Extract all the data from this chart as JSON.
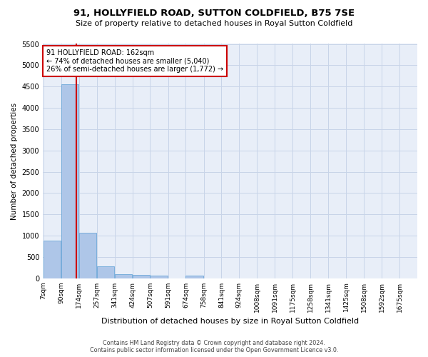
{
  "title1": "91, HOLLYFIELD ROAD, SUTTON COLDFIELD, B75 7SE",
  "title2": "Size of property relative to detached houses in Royal Sutton Coldfield",
  "xlabel": "Distribution of detached houses by size in Royal Sutton Coldfield",
  "ylabel": "Number of detached properties",
  "footer1": "Contains HM Land Registry data © Crown copyright and database right 2024.",
  "footer2": "Contains public sector information licensed under the Open Government Licence v3.0.",
  "property_size": 162,
  "annotation_line1": "91 HOLLYFIELD ROAD: 162sqm",
  "annotation_line2": "← 74% of detached houses are smaller (5,040)",
  "annotation_line3": "26% of semi-detached houses are larger (1,772) →",
  "bins": [
    7,
    90,
    174,
    257,
    341,
    424,
    507,
    591,
    674,
    758,
    841,
    924,
    1008,
    1091,
    1175,
    1258,
    1341,
    1425,
    1508,
    1592,
    1675
  ],
  "bin_labels": [
    "7sqm",
    "90sqm",
    "174sqm",
    "257sqm",
    "341sqm",
    "424sqm",
    "507sqm",
    "591sqm",
    "674sqm",
    "758sqm",
    "841sqm",
    "924sqm",
    "1008sqm",
    "1091sqm",
    "1175sqm",
    "1258sqm",
    "1341sqm",
    "1425sqm",
    "1508sqm",
    "1592sqm",
    "1675sqm"
  ],
  "counts": [
    880,
    4550,
    1060,
    280,
    90,
    80,
    55,
    0,
    55,
    0,
    0,
    0,
    0,
    0,
    0,
    0,
    0,
    0,
    0,
    0
  ],
  "bar_color": "#aec6e8",
  "bar_edge_color": "#5a9fd4",
  "vline_color": "#cc0000",
  "annotation_box_color": "#cc0000",
  "grid_color": "#c8d4e8",
  "bg_color": "#e8eef8",
  "ylim": [
    0,
    5500
  ],
  "yticks": [
    0,
    500,
    1000,
    1500,
    2000,
    2500,
    3000,
    3500,
    4000,
    4500,
    5000,
    5500
  ],
  "title1_fontsize": 9.5,
  "title2_fontsize": 8,
  "xlabel_fontsize": 8,
  "ylabel_fontsize": 7.5,
  "footer_fontsize": 5.8,
  "tick_fontsize": 6.5,
  "ytick_fontsize": 7
}
